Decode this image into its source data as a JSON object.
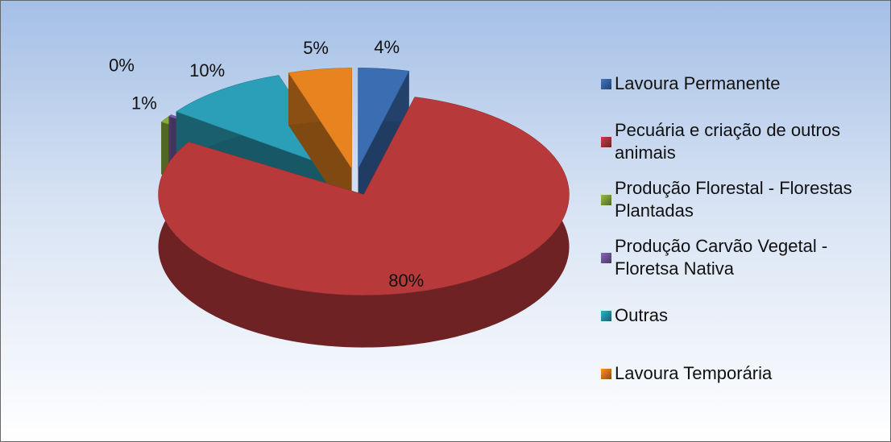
{
  "chart_data": {
    "type": "pie",
    "categories": [
      "Lavoura Permanente",
      "Pecuária e criação de outros animais",
      "Produção Florestal - Florestas Plantadas",
      "Produção Carvão Vegetal - Floretsa Nativa",
      "Outras",
      "Lavoura Temporária"
    ],
    "values": [
      4,
      80,
      1,
      0.3,
      10,
      5
    ],
    "value_labels": [
      "4%",
      "80%",
      "1%",
      "0%",
      "10%",
      "5%"
    ],
    "colors": [
      "#3b6db3",
      "#b8393a",
      "#8bab3c",
      "#7a5ea8",
      "#2b9fb7",
      "#e8841f"
    ],
    "legend": "right"
  }
}
